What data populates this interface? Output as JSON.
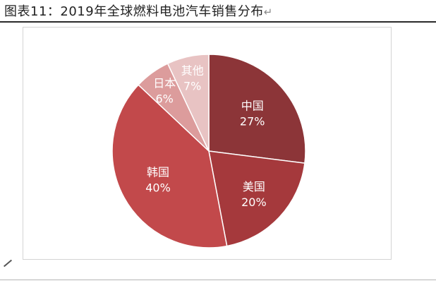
{
  "caption": "图表11：2019年全球燃料电池汽车销售分布",
  "caption_mark": "↵",
  "chart_data": {
    "type": "pie",
    "title": "",
    "categories": [
      "中国",
      "美国",
      "韩国",
      "日本",
      "其他"
    ],
    "values": [
      27,
      20,
      40,
      6,
      7
    ],
    "value_labels": [
      "27%",
      "20%",
      "40%",
      "6%",
      "7%"
    ],
    "colors": [
      "#8c3538",
      "#a5393c",
      "#c2494b",
      "#dc9c9c",
      "#e8c3c3"
    ],
    "label_colors": [
      "#ffffff",
      "#ffffff",
      "#ffffff",
      "#ffffff",
      "#ffffff"
    ],
    "legend": "none",
    "start_angle_deg": 0,
    "direction": "clockwise"
  }
}
